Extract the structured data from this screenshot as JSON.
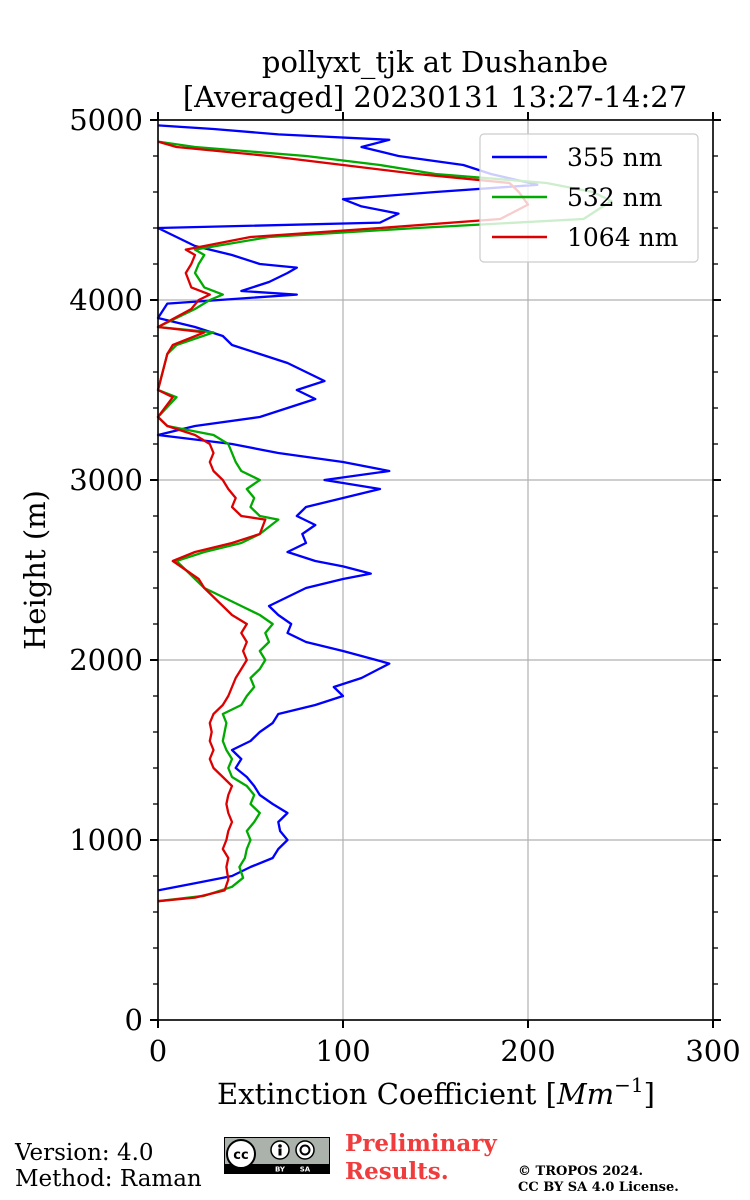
{
  "chart_data": {
    "type": "line",
    "title": "pollyxt_tjk at Dushanbe",
    "subtitle": "[Averaged] 20230131 13:27-14:27",
    "xlabel_main": "Extinction Coefficient [",
    "xlabel_unit": "Mm",
    "xlabel_exp": "−1",
    "xlabel_close": "]",
    "ylabel": "Height (m)",
    "xlim": [
      0,
      300
    ],
    "ylim": [
      0,
      5000
    ],
    "x_ticks": [
      "0",
      "100",
      "200",
      "300"
    ],
    "y_ticks": [
      "0",
      "1000",
      "2000",
      "3000",
      "4000",
      "5000"
    ],
    "grid": true,
    "legend_position": "top-right",
    "series": [
      {
        "name": "355 nm",
        "color": "#0000ff",
        "points": [
          [
            0,
            720
          ],
          [
            20,
            760
          ],
          [
            40,
            800
          ],
          [
            50,
            850
          ],
          [
            62,
            900
          ],
          [
            65,
            950
          ],
          [
            70,
            1000
          ],
          [
            66,
            1050
          ],
          [
            65,
            1100
          ],
          [
            70,
            1150
          ],
          [
            62,
            1200
          ],
          [
            55,
            1250
          ],
          [
            52,
            1300
          ],
          [
            48,
            1350
          ],
          [
            42,
            1400
          ],
          [
            45,
            1450
          ],
          [
            40,
            1500
          ],
          [
            50,
            1550
          ],
          [
            55,
            1600
          ],
          [
            62,
            1650
          ],
          [
            65,
            1700
          ],
          [
            85,
            1750
          ],
          [
            100,
            1800
          ],
          [
            95,
            1850
          ],
          [
            110,
            1900
          ],
          [
            125,
            1980
          ],
          [
            118,
            2000
          ],
          [
            100,
            2050
          ],
          [
            80,
            2100
          ],
          [
            70,
            2150
          ],
          [
            72,
            2200
          ],
          [
            65,
            2250
          ],
          [
            60,
            2300
          ],
          [
            70,
            2350
          ],
          [
            80,
            2400
          ],
          [
            100,
            2450
          ],
          [
            115,
            2480
          ],
          [
            100,
            2520
          ],
          [
            85,
            2550
          ],
          [
            70,
            2600
          ],
          [
            80,
            2650
          ],
          [
            78,
            2700
          ],
          [
            85,
            2750
          ],
          [
            75,
            2800
          ],
          [
            80,
            2850
          ],
          [
            100,
            2900
          ],
          [
            120,
            2950
          ],
          [
            90,
            3000
          ],
          [
            125,
            3050
          ],
          [
            100,
            3100
          ],
          [
            65,
            3150
          ],
          [
            40,
            3200
          ],
          [
            0,
            3250
          ],
          [
            20,
            3300
          ],
          [
            55,
            3350
          ],
          [
            70,
            3400
          ],
          [
            85,
            3450
          ],
          [
            75,
            3500
          ],
          [
            90,
            3550
          ],
          [
            80,
            3600
          ],
          [
            70,
            3650
          ],
          [
            55,
            3700
          ],
          [
            40,
            3750
          ],
          [
            35,
            3800
          ],
          [
            20,
            3850
          ],
          [
            0,
            3900
          ],
          [
            5,
            3980
          ],
          [
            75,
            4030
          ],
          [
            45,
            4050
          ],
          [
            60,
            4100
          ],
          [
            70,
            4150
          ],
          [
            75,
            4180
          ],
          [
            55,
            4200
          ],
          [
            40,
            4250
          ],
          [
            20,
            4300
          ],
          [
            0,
            4400
          ],
          [
            120,
            4430
          ],
          [
            130,
            4480
          ],
          [
            110,
            4520
          ],
          [
            100,
            4560
          ],
          [
            150,
            4600
          ],
          [
            205,
            4640
          ],
          [
            180,
            4700
          ],
          [
            165,
            4750
          ],
          [
            130,
            4800
          ],
          [
            110,
            4850
          ],
          [
            125,
            4890
          ],
          [
            65,
            4920
          ],
          [
            30,
            4950
          ],
          [
            0,
            4970
          ]
        ]
      },
      {
        "name": "532 nm",
        "color": "#00aa00",
        "points": [
          [
            0,
            660
          ],
          [
            25,
            690
          ],
          [
            40,
            740
          ],
          [
            46,
            790
          ],
          [
            44,
            850
          ],
          [
            47,
            900
          ],
          [
            48,
            950
          ],
          [
            50,
            1000
          ],
          [
            48,
            1050
          ],
          [
            52,
            1100
          ],
          [
            55,
            1150
          ],
          [
            50,
            1200
          ],
          [
            52,
            1250
          ],
          [
            48,
            1300
          ],
          [
            40,
            1350
          ],
          [
            38,
            1400
          ],
          [
            40,
            1450
          ],
          [
            37,
            1500
          ],
          [
            35,
            1550
          ],
          [
            36,
            1600
          ],
          [
            37,
            1650
          ],
          [
            35,
            1700
          ],
          [
            45,
            1750
          ],
          [
            48,
            1800
          ],
          [
            52,
            1850
          ],
          [
            50,
            1900
          ],
          [
            55,
            1950
          ],
          [
            58,
            2000
          ],
          [
            55,
            2050
          ],
          [
            60,
            2100
          ],
          [
            58,
            2150
          ],
          [
            62,
            2200
          ],
          [
            55,
            2250
          ],
          [
            45,
            2300
          ],
          [
            35,
            2350
          ],
          [
            25,
            2400
          ],
          [
            20,
            2450
          ],
          [
            15,
            2500
          ],
          [
            10,
            2550
          ],
          [
            25,
            2600
          ],
          [
            45,
            2650
          ],
          [
            55,
            2700
          ],
          [
            65,
            2780
          ],
          [
            55,
            2800
          ],
          [
            50,
            2850
          ],
          [
            52,
            2900
          ],
          [
            48,
            2950
          ],
          [
            55,
            3000
          ],
          [
            45,
            3050
          ],
          [
            42,
            3100
          ],
          [
            40,
            3150
          ],
          [
            38,
            3200
          ],
          [
            30,
            3250
          ],
          [
            5,
            3300
          ],
          [
            0,
            3350
          ],
          [
            10,
            3460
          ],
          [
            0,
            3500
          ],
          [
            5,
            3700
          ],
          [
            10,
            3750
          ],
          [
            30,
            3820
          ],
          [
            0,
            3850
          ],
          [
            20,
            3950
          ],
          [
            28,
            4000
          ],
          [
            35,
            4030
          ],
          [
            25,
            4070
          ],
          [
            20,
            4150
          ],
          [
            22,
            4200
          ],
          [
            25,
            4250
          ],
          [
            20,
            4280
          ],
          [
            60,
            4350
          ],
          [
            140,
            4400
          ],
          [
            230,
            4450
          ],
          [
            245,
            4550
          ],
          [
            235,
            4600
          ],
          [
            210,
            4650
          ],
          [
            150,
            4700
          ],
          [
            120,
            4750
          ],
          [
            80,
            4800
          ],
          [
            20,
            4850
          ],
          [
            0,
            4880
          ]
        ]
      },
      {
        "name": "1064 nm",
        "color": "#dd0000",
        "points": [
          [
            0,
            660
          ],
          [
            20,
            680
          ],
          [
            36,
            720
          ],
          [
            38,
            780
          ],
          [
            37,
            850
          ],
          [
            38,
            900
          ],
          [
            35,
            950
          ],
          [
            37,
            1000
          ],
          [
            38,
            1050
          ],
          [
            40,
            1100
          ],
          [
            38,
            1150
          ],
          [
            37,
            1200
          ],
          [
            38,
            1250
          ],
          [
            40,
            1300
          ],
          [
            35,
            1350
          ],
          [
            30,
            1400
          ],
          [
            28,
            1450
          ],
          [
            30,
            1500
          ],
          [
            28,
            1550
          ],
          [
            29,
            1600
          ],
          [
            28,
            1650
          ],
          [
            30,
            1700
          ],
          [
            35,
            1750
          ],
          [
            38,
            1800
          ],
          [
            40,
            1850
          ],
          [
            42,
            1900
          ],
          [
            45,
            1950
          ],
          [
            48,
            2000
          ],
          [
            46,
            2050
          ],
          [
            48,
            2100
          ],
          [
            45,
            2150
          ],
          [
            48,
            2200
          ],
          [
            40,
            2250
          ],
          [
            35,
            2300
          ],
          [
            30,
            2350
          ],
          [
            25,
            2400
          ],
          [
            22,
            2450
          ],
          [
            15,
            2500
          ],
          [
            8,
            2550
          ],
          [
            20,
            2600
          ],
          [
            40,
            2650
          ],
          [
            55,
            2700
          ],
          [
            58,
            2780
          ],
          [
            45,
            2800
          ],
          [
            40,
            2850
          ],
          [
            42,
            2900
          ],
          [
            38,
            2950
          ],
          [
            35,
            3000
          ],
          [
            30,
            3050
          ],
          [
            28,
            3100
          ],
          [
            30,
            3150
          ],
          [
            28,
            3200
          ],
          [
            20,
            3250
          ],
          [
            5,
            3300
          ],
          [
            0,
            3350
          ],
          [
            8,
            3460
          ],
          [
            0,
            3500
          ],
          [
            5,
            3700
          ],
          [
            8,
            3750
          ],
          [
            25,
            3820
          ],
          [
            0,
            3850
          ],
          [
            18,
            3950
          ],
          [
            22,
            4000
          ],
          [
            28,
            4030
          ],
          [
            18,
            4070
          ],
          [
            15,
            4150
          ],
          [
            18,
            4200
          ],
          [
            20,
            4250
          ],
          [
            15,
            4280
          ],
          [
            50,
            4350
          ],
          [
            120,
            4400
          ],
          [
            185,
            4450
          ],
          [
            200,
            4530
          ],
          [
            195,
            4600
          ],
          [
            190,
            4650
          ],
          [
            140,
            4700
          ],
          [
            100,
            4750
          ],
          [
            60,
            4800
          ],
          [
            10,
            4850
          ],
          [
            0,
            4880
          ]
        ]
      }
    ]
  },
  "footer": {
    "version": "Version: 4.0",
    "method": "Method: Raman",
    "cc_label": "cc",
    "cc_by": "BY",
    "cc_sa": "SA",
    "preliminary_line1": "Preliminary",
    "preliminary_line2": "Results.",
    "copyright_line1": "© TROPOS 2024.",
    "copyright_line2": "CC BY SA 4.0 License."
  }
}
